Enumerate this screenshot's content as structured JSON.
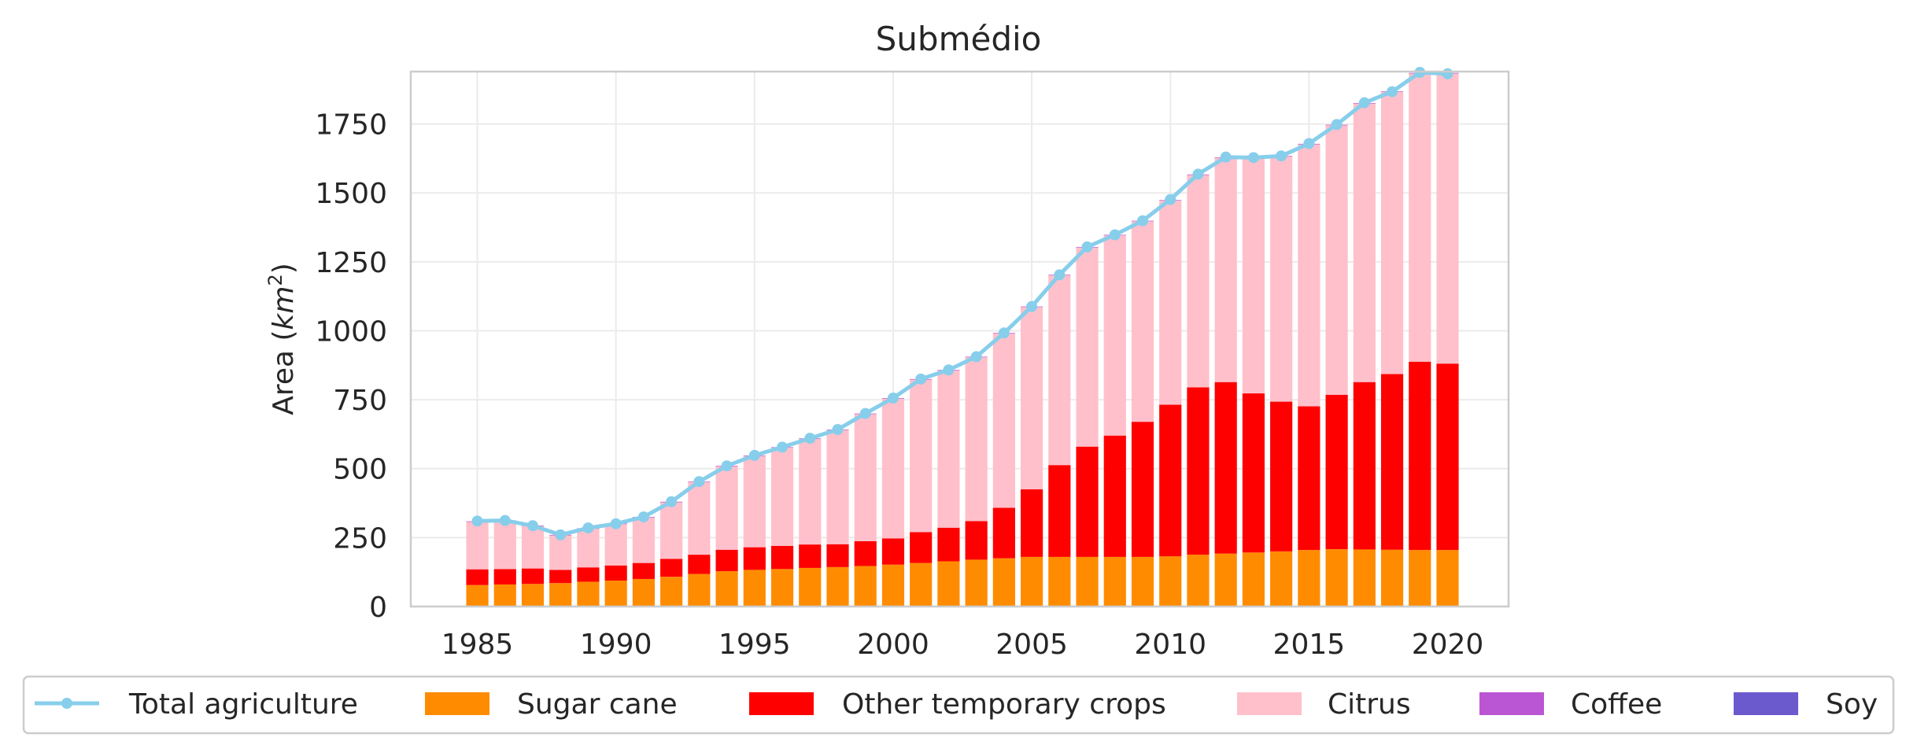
{
  "chart_data": {
    "type": "bar",
    "title": "Submédio",
    "ylabel": "Area",
    "ylabel_unit_base": "km",
    "ylabel_unit_exp": "2",
    "xlabel": "",
    "ylim": [
      0,
      1940
    ],
    "xlim": [
      1982.6,
      2022.2
    ],
    "xticks": [
      1985,
      1990,
      1995,
      2000,
      2005,
      2010,
      2015,
      2020
    ],
    "yticks": [
      0,
      250,
      500,
      750,
      1000,
      1250,
      1500,
      1750
    ],
    "grid": true,
    "legend_position": "bottom",
    "years": [
      1985,
      1986,
      1987,
      1988,
      1989,
      1990,
      1991,
      1992,
      1993,
      1994,
      1995,
      1996,
      1997,
      1998,
      1999,
      2000,
      2001,
      2002,
      2003,
      2004,
      2005,
      2006,
      2007,
      2008,
      2009,
      2010,
      2011,
      2012,
      2013,
      2014,
      2015,
      2016,
      2017,
      2018,
      2019,
      2020
    ],
    "series": [
      {
        "name": "Sugar cane",
        "color": "#ff8c00",
        "values": [
          78,
          80,
          82,
          85,
          90,
          94,
          100,
          108,
          118,
          128,
          133,
          136,
          140,
          143,
          147,
          152,
          158,
          164,
          170,
          175,
          180,
          180,
          180,
          180,
          180,
          182,
          188,
          192,
          196,
          200,
          205,
          208,
          207,
          206,
          205,
          205
        ]
      },
      {
        "name": "Other temporary crops",
        "color": "#ff0000",
        "values": [
          57,
          56,
          56,
          48,
          52,
          55,
          58,
          65,
          70,
          78,
          82,
          84,
          85,
          83,
          90,
          95,
          112,
          122,
          140,
          183,
          245,
          333,
          400,
          440,
          490,
          550,
          607,
          622,
          577,
          543,
          521,
          560,
          607,
          637,
          683,
          676
        ]
      },
      {
        "name": "Citrus",
        "color": "#ffc0cb",
        "values": [
          172,
          174,
          154,
          125,
          140,
          150,
          165,
          205,
          263,
          302,
          331,
          356,
          383,
          414,
          461,
          507,
          553,
          570,
          594,
          632,
          661,
          688,
          722,
          726,
          727,
          740,
          770,
          813,
          853,
          889,
          950,
          977,
          1010,
          1023,
          1045,
          1052
        ]
      },
      {
        "name": "Coffee",
        "color": "#ba55d3",
        "values": [
          2,
          2,
          2,
          2,
          2,
          2,
          2,
          2,
          2,
          2,
          2,
          2,
          2,
          2,
          2,
          2,
          2,
          2,
          2,
          2,
          2,
          2,
          2,
          2,
          2,
          2,
          2,
          2,
          2,
          2,
          2,
          2,
          2,
          2,
          2,
          2
        ]
      },
      {
        "name": "Soy",
        "color": "#6a5acd",
        "values": [
          0,
          0,
          0,
          0,
          0,
          0,
          0,
          0,
          0,
          0,
          0,
          0,
          0,
          0,
          0,
          0,
          0,
          0,
          0,
          0,
          0,
          0,
          0,
          0,
          0,
          0,
          0,
          0,
          0,
          0,
          0,
          0,
          0,
          0,
          0,
          0
        ]
      }
    ],
    "line": {
      "name": "Total agriculture",
      "color": "#87ceeb",
      "values": [
        310,
        312,
        293,
        260,
        285,
        300,
        325,
        380,
        453,
        510,
        548,
        578,
        610,
        642,
        700,
        756,
        825,
        858,
        906,
        992,
        1088,
        1203,
        1304,
        1348,
        1399,
        1476,
        1568,
        1630,
        1628,
        1634,
        1679,
        1748,
        1827,
        1867,
        1937,
        1932
      ]
    },
    "legend": [
      "Total agriculture",
      "Sugar cane",
      "Other temporary crops",
      "Citrus",
      "Coffee",
      "Soy"
    ]
  }
}
